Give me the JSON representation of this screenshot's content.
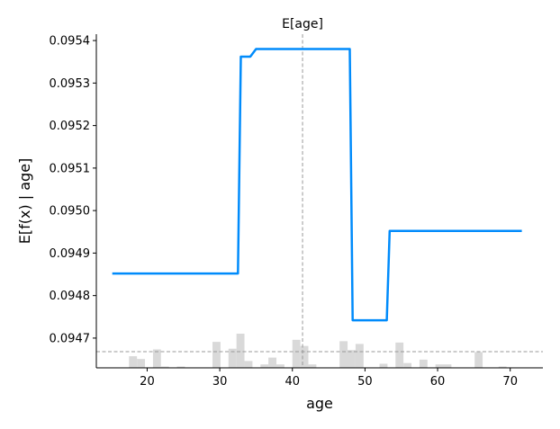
{
  "chart_data": {
    "type": "line",
    "title": "",
    "xlabel": "age",
    "ylabel": "E[f(x) | age]",
    "mean_x_label": "E[age]",
    "mean_x": 41.4,
    "mean_y": 0.094668,
    "xlim": [
      13,
      74.5
    ],
    "ylim": [
      0.09463,
      0.095415
    ],
    "x_ticks": [
      20,
      30,
      40,
      50,
      60,
      70
    ],
    "x_tick_labels": [
      "20",
      "30",
      "40",
      "50",
      "60",
      "70"
    ],
    "y_ticks": [
      0.0947,
      0.0948,
      0.0949,
      0.095,
      0.0951,
      0.0952,
      0.0953,
      0.0954
    ],
    "y_tick_labels": [
      "0.0947",
      "0.0948",
      "0.0949",
      "0.0950",
      "0.0951",
      "0.0952",
      "0.0953",
      "0.0954"
    ],
    "grid": false,
    "series": [
      {
        "color": "#008bfb",
        "x": [
          15.2,
          32.5,
          32.9,
          34.2,
          35.0,
          47.9,
          48.3,
          53.0,
          53.4,
          71.6
        ],
        "y": [
          0.094852,
          0.094852,
          0.095362,
          0.095362,
          0.09538,
          0.09538,
          0.094742,
          0.094742,
          0.094952,
          0.094952
        ]
      }
    ],
    "histogram": {
      "color": "#d9d9d9",
      "bins": [
        {
          "x0": 17.5,
          "x1": 18.6,
          "h": 0.34
        },
        {
          "x0": 18.6,
          "x1": 19.7,
          "h": 0.26
        },
        {
          "x0": 20.8,
          "x1": 21.9,
          "h": 0.54
        },
        {
          "x0": 21.9,
          "x1": 23.0,
          "h": 0.04
        },
        {
          "x0": 24.1,
          "x1": 25.2,
          "h": 0.04
        },
        {
          "x0": 29.0,
          "x1": 30.1,
          "h": 0.76
        },
        {
          "x0": 31.2,
          "x1": 32.3,
          "h": 0.56
        },
        {
          "x0": 32.3,
          "x1": 33.4,
          "h": 1.0
        },
        {
          "x0": 33.4,
          "x1": 34.5,
          "h": 0.2
        },
        {
          "x0": 35.6,
          "x1": 36.7,
          "h": 0.1
        },
        {
          "x0": 36.7,
          "x1": 37.8,
          "h": 0.3
        },
        {
          "x0": 37.8,
          "x1": 38.9,
          "h": 0.1
        },
        {
          "x0": 40.0,
          "x1": 41.1,
          "h": 0.82
        },
        {
          "x0": 41.1,
          "x1": 42.2,
          "h": 0.64
        },
        {
          "x0": 42.2,
          "x1": 43.3,
          "h": 0.1
        },
        {
          "x0": 46.5,
          "x1": 47.6,
          "h": 0.78
        },
        {
          "x0": 47.6,
          "x1": 48.7,
          "h": 0.52
        },
        {
          "x0": 48.7,
          "x1": 49.8,
          "h": 0.7
        },
        {
          "x0": 52.0,
          "x1": 53.1,
          "h": 0.12
        },
        {
          "x0": 54.2,
          "x1": 55.3,
          "h": 0.74
        },
        {
          "x0": 55.3,
          "x1": 56.4,
          "h": 0.14
        },
        {
          "x0": 57.5,
          "x1": 58.6,
          "h": 0.24
        },
        {
          "x0": 59.7,
          "x1": 60.8,
          "h": 0.1
        },
        {
          "x0": 60.8,
          "x1": 61.9,
          "h": 0.1
        },
        {
          "x0": 65.1,
          "x1": 66.2,
          "h": 0.46
        },
        {
          "x0": 68.4,
          "x1": 69.5,
          "h": 0.04
        }
      ]
    }
  }
}
